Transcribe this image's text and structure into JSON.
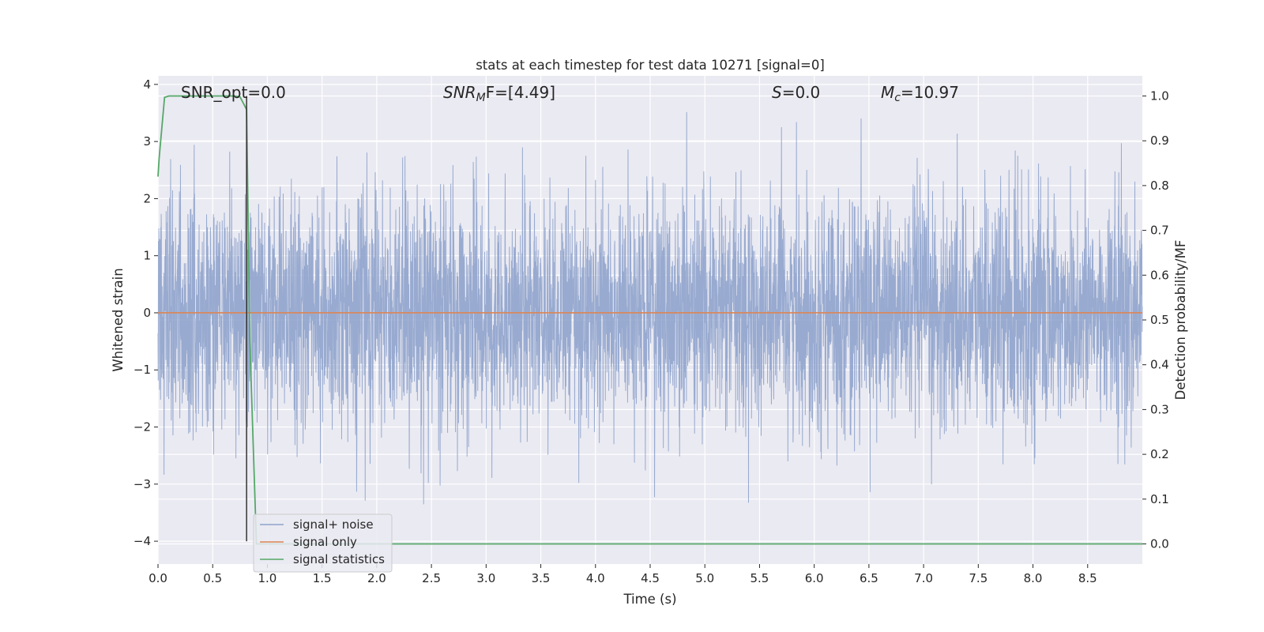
{
  "chart_data": {
    "type": "line",
    "title": "stats at each timestep for test data 10271 [signal=0]",
    "xlabel": "Time (s)",
    "ylabel": "Whitened strain",
    "y2label": "Detection probability/MF",
    "xlim": [
      0,
      9.0
    ],
    "ylim": [
      -4.4,
      4.15
    ],
    "y2lim": [
      -0.045,
      1.045
    ],
    "x_ticks": [
      "0.0",
      "0.5",
      "1.0",
      "1.5",
      "2.0",
      "2.5",
      "3.0",
      "3.5",
      "4.0",
      "4.5",
      "5.0",
      "5.5",
      "6.0",
      "6.5",
      "7.0",
      "7.5",
      "8.0",
      "8.5"
    ],
    "y_ticks": [
      "4",
      "3",
      "2",
      "1",
      "0",
      "−1",
      "−2",
      "−3",
      "−4"
    ],
    "y2_ticks": [
      "1.0",
      "0.9",
      "0.8",
      "0.7",
      "0.6",
      "0.5",
      "0.4",
      "0.3",
      "0.2",
      "0.1",
      "0.0"
    ],
    "grid": true,
    "legend_position": "lower-left",
    "colors": {
      "noise": "#8fa3cc",
      "signal": "#dd8452",
      "stats": "#55a868",
      "marker": "#333333",
      "axes_bg": "#eaeaf2",
      "grid": "#ffffff"
    },
    "annotations": {
      "snr_opt": "SNR_opt=0.0",
      "snr_mf_base": "SNR",
      "snr_mf_sub": "M",
      "snr_mf_rest": "F=[4.49]",
      "s_var": "S",
      "s_rest": "=0.0",
      "mc_base": "M",
      "mc_sub": "c",
      "mc_rest": "=10.97"
    },
    "marker_line_x": 0.81,
    "series": [
      {
        "name": "signal+ noise",
        "description": "whitened strain noise, approx. Gaussian, sigma ~1, range approx. -4 to 3.8",
        "y_range": [
          -4.0,
          3.8
        ]
      },
      {
        "name": "signal only",
        "x": [
          0,
          9.0
        ],
        "y": [
          0,
          0
        ]
      },
      {
        "name": "signal statistics",
        "axis": "right",
        "x": [
          0,
          0.01,
          0.06,
          0.1,
          0.3,
          0.5,
          0.7,
          0.75,
          0.81,
          0.84,
          0.9,
          1.0,
          2.0,
          4.0,
          6.0,
          8.0,
          9.0
        ],
        "y": [
          0.82,
          0.86,
          0.997,
          1.0,
          1.0,
          1.0,
          1.0,
          0.998,
          0.97,
          0.45,
          0.0,
          0.0,
          0.0,
          0.0,
          0.0,
          0.0,
          0.0
        ]
      }
    ],
    "legend": [
      "signal+ noise",
      "signal only",
      "signal statistics"
    ]
  }
}
